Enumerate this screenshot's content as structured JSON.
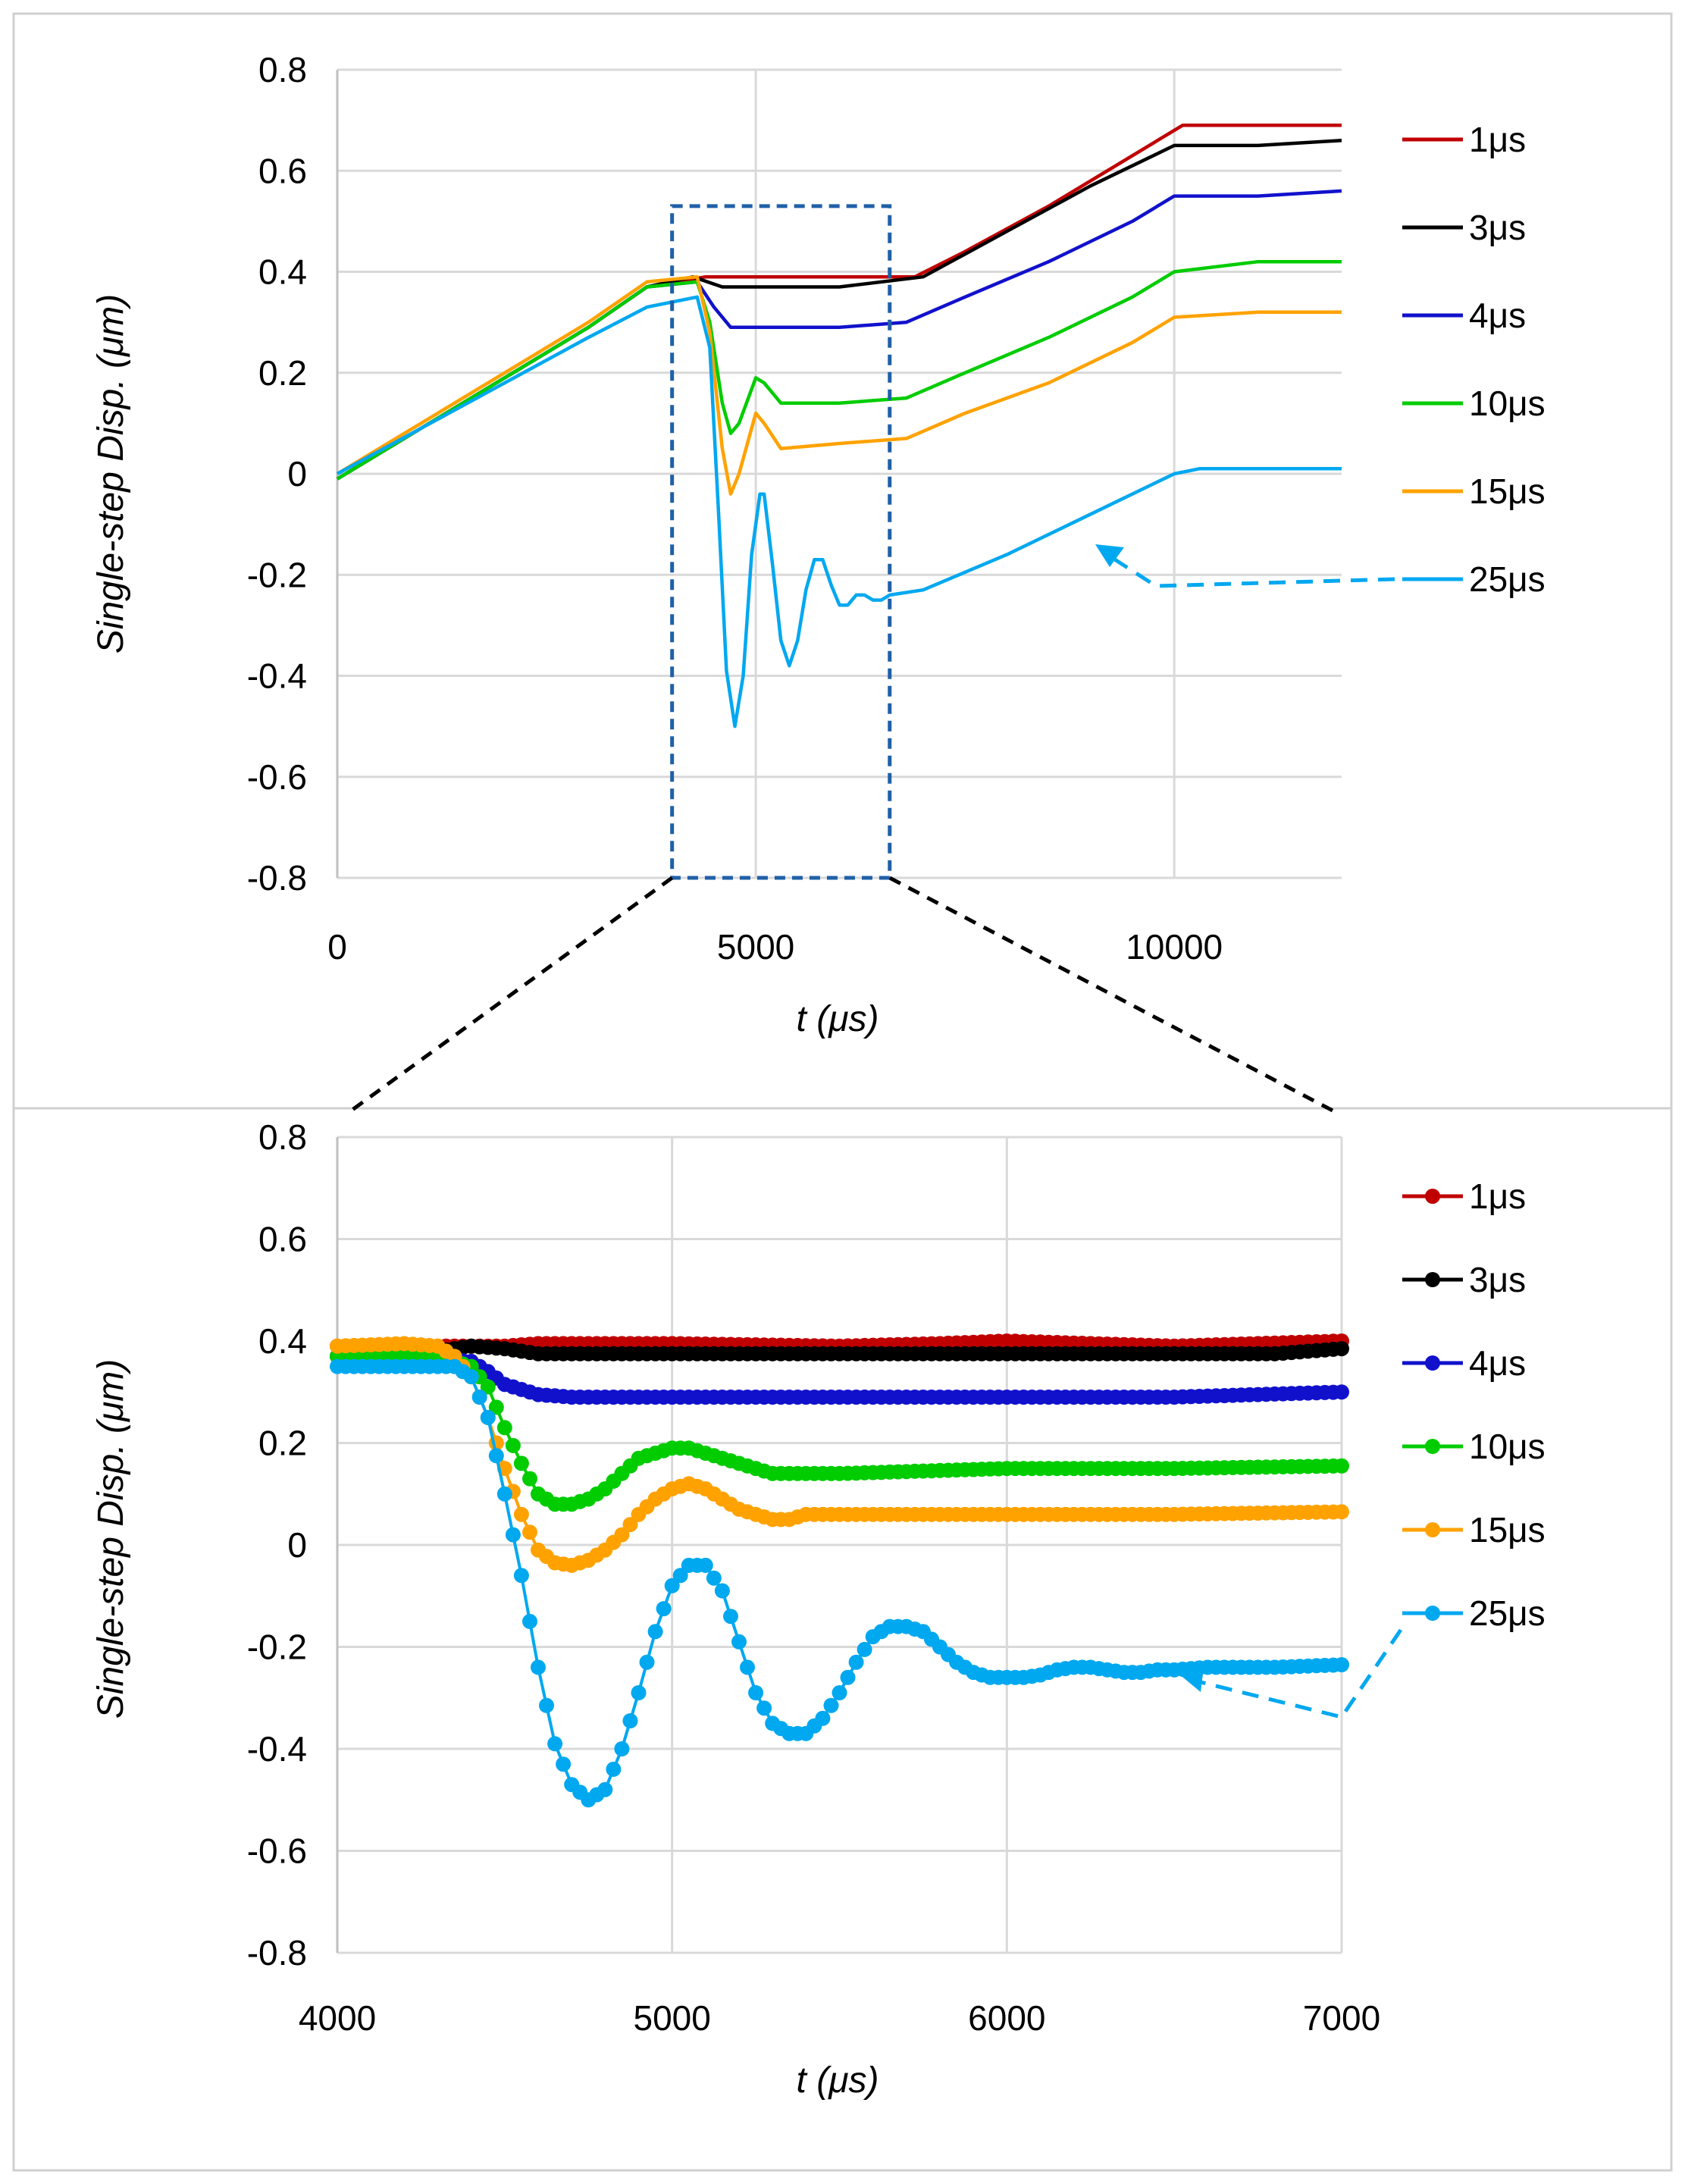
{
  "colors": {
    "s1": "#c00000",
    "s3": "#000000",
    "s4": "#1111cc",
    "s10": "#00cc00",
    "s15": "#ffa200",
    "s25": "#00a8f0",
    "zoom_box": "#2060a8",
    "grid": "#d9d9d9"
  },
  "chart_data": [
    {
      "type": "line",
      "title": "",
      "xlabel": "t (μs)",
      "ylabel": "Single-step Disp. (μm)",
      "xlim": [
        0,
        12000
      ],
      "ylim": [
        -0.8,
        0.8
      ],
      "xticks": [
        0,
        5000,
        10000
      ],
      "xtick_labels": [
        "0",
        "5000",
        "10000"
      ],
      "yticks": [
        -0.8,
        -0.6,
        -0.4,
        -0.2,
        0,
        0.2,
        0.4,
        0.6,
        0.8
      ],
      "ytick_labels": [
        "-0.8",
        "-0.6",
        "-0.4",
        "-0.2",
        "0",
        "0.2",
        "0.4",
        "0.6",
        "0.8"
      ],
      "legend_position": "right",
      "zoom_box": {
        "x": [
          4000,
          6600
        ],
        "y": [
          -0.8,
          0.53
        ]
      },
      "series": [
        {
          "name": "1μs",
          "color_key": "s1",
          "x": [
            0,
            1000,
            2000,
            3000,
            3700,
            4400,
            5000,
            6000,
            6900,
            7500,
            8500,
            9500,
            10100,
            11000,
            12000
          ],
          "y": [
            -0.01,
            0.09,
            0.19,
            0.29,
            0.37,
            0.39,
            0.39,
            0.39,
            0.39,
            0.44,
            0.53,
            0.63,
            0.69,
            0.69,
            0.69
          ]
        },
        {
          "name": "3μs",
          "color_key": "s3",
          "x": [
            0,
            1000,
            2000,
            3000,
            3700,
            4250,
            4600,
            5000,
            6000,
            7000,
            8000,
            9000,
            10000,
            11000,
            12000
          ],
          "y": [
            -0.01,
            0.09,
            0.19,
            0.29,
            0.37,
            0.39,
            0.37,
            0.37,
            0.37,
            0.39,
            0.48,
            0.57,
            0.65,
            0.65,
            0.66
          ]
        },
        {
          "name": "4μs",
          "color_key": "s4",
          "x": [
            0,
            1000,
            2000,
            3000,
            3700,
            4300,
            4500,
            4700,
            5000,
            6000,
            6800,
            7500,
            8500,
            9500,
            10000,
            11000,
            12000
          ],
          "y": [
            -0.01,
            0.09,
            0.19,
            0.29,
            0.37,
            0.38,
            0.33,
            0.29,
            0.29,
            0.29,
            0.3,
            0.35,
            0.42,
            0.5,
            0.55,
            0.55,
            0.56
          ]
        },
        {
          "name": "10μs",
          "color_key": "s10",
          "x": [
            0,
            1000,
            2000,
            3000,
            3700,
            4300,
            4450,
            4600,
            4700,
            4800,
            5000,
            5100,
            5300,
            6000,
            6800,
            7500,
            8500,
            9500,
            10000,
            11000,
            12000
          ],
          "y": [
            -0.01,
            0.09,
            0.19,
            0.29,
            0.37,
            0.38,
            0.3,
            0.14,
            0.08,
            0.1,
            0.19,
            0.18,
            0.14,
            0.14,
            0.15,
            0.2,
            0.27,
            0.35,
            0.4,
            0.42,
            0.42
          ]
        },
        {
          "name": "15μs",
          "color_key": "s15",
          "x": [
            0,
            1000,
            2000,
            3000,
            3700,
            4300,
            4450,
            4600,
            4700,
            4800,
            5000,
            5100,
            5300,
            6000,
            6800,
            7500,
            8500,
            9500,
            10000,
            11000,
            12000
          ],
          "y": [
            0,
            0.1,
            0.2,
            0.3,
            0.38,
            0.39,
            0.28,
            0.05,
            -0.04,
            0.0,
            0.12,
            0.1,
            0.05,
            0.06,
            0.07,
            0.12,
            0.18,
            0.26,
            0.31,
            0.32,
            0.32
          ]
        },
        {
          "name": "25μs",
          "color_key": "s25",
          "x": [
            0,
            1000,
            2000,
            3000,
            3700,
            4300,
            4450,
            4550,
            4650,
            4750,
            4850,
            4950,
            5050,
            5100,
            5200,
            5300,
            5400,
            5500,
            5600,
            5700,
            5800,
            5900,
            6000,
            6100,
            6200,
            6300,
            6400,
            6500,
            6600,
            7000,
            8000,
            9000,
            10000,
            10300,
            11000,
            12000
          ],
          "y": [
            0,
            0.09,
            0.18,
            0.27,
            0.33,
            0.35,
            0.25,
            -0.06,
            -0.39,
            -0.5,
            -0.4,
            -0.16,
            -0.04,
            -0.04,
            -0.18,
            -0.33,
            -0.38,
            -0.33,
            -0.23,
            -0.17,
            -0.17,
            -0.22,
            -0.26,
            -0.26,
            -0.24,
            -0.24,
            -0.25,
            -0.25,
            -0.24,
            -0.23,
            -0.16,
            -0.08,
            0.0,
            0.01,
            0.01,
            0.01
          ]
        }
      ]
    },
    {
      "type": "line",
      "title": "",
      "xlabel": "t (μs)",
      "ylabel": "Single-step Disp. (μm)",
      "xlim": [
        4000,
        7000
      ],
      "ylim": [
        -0.8,
        0.8
      ],
      "xticks": [
        4000,
        5000,
        6000,
        7000
      ],
      "xtick_labels": [
        "4000",
        "5000",
        "6000",
        "7000"
      ],
      "yticks": [
        -0.8,
        -0.6,
        -0.4,
        -0.2,
        0,
        0.2,
        0.4,
        0.6,
        0.8
      ],
      "ytick_labels": [
        "-0.8",
        "-0.6",
        "-0.4",
        "-0.2",
        "0",
        "0.2",
        "0.4",
        "0.6",
        "0.8"
      ],
      "legend_position": "right",
      "markers": true,
      "series": [
        {
          "name": "1μs",
          "color_key": "s1",
          "x": [
            4000,
            4200,
            4300,
            4400,
            4500,
            4600,
            5000,
            5500,
            5800,
            6000,
            6500,
            7000
          ],
          "y": [
            0.39,
            0.39,
            0.39,
            0.39,
            0.39,
            0.395,
            0.395,
            0.39,
            0.395,
            0.4,
            0.39,
            0.4
          ]
        },
        {
          "name": "3μs",
          "color_key": "s3",
          "x": [
            4000,
            4300,
            4400,
            4500,
            4600,
            5000,
            5500,
            6000,
            6500,
            6800,
            7000
          ],
          "y": [
            0.37,
            0.38,
            0.39,
            0.385,
            0.375,
            0.375,
            0.375,
            0.375,
            0.375,
            0.375,
            0.385
          ]
        },
        {
          "name": "4μs",
          "color_key": "s4",
          "x": [
            4000,
            4200,
            4400,
            4450,
            4500,
            4600,
            4700,
            5000,
            5500,
            6000,
            6500,
            7000
          ],
          "y": [
            0.37,
            0.37,
            0.36,
            0.34,
            0.315,
            0.295,
            0.29,
            0.29,
            0.29,
            0.29,
            0.29,
            0.3
          ]
        },
        {
          "name": "10μs",
          "color_key": "s10",
          "x": [
            4000,
            4300,
            4400,
            4450,
            4500,
            4550,
            4600,
            4650,
            4700,
            4750,
            4800,
            4850,
            4900,
            4950,
            5000,
            5050,
            5100,
            5150,
            5200,
            5250,
            5300,
            5400,
            5500,
            6000,
            6500,
            7000
          ],
          "y": [
            0.37,
            0.37,
            0.35,
            0.31,
            0.23,
            0.16,
            0.1,
            0.08,
            0.08,
            0.09,
            0.11,
            0.14,
            0.17,
            0.18,
            0.19,
            0.19,
            0.18,
            0.17,
            0.16,
            0.15,
            0.14,
            0.14,
            0.14,
            0.15,
            0.15,
            0.155
          ]
        },
        {
          "name": "15μs",
          "color_key": "s15",
          "x": [
            4000,
            4200,
            4300,
            4350,
            4400,
            4450,
            4500,
            4550,
            4600,
            4650,
            4700,
            4750,
            4800,
            4850,
            4900,
            4950,
            5000,
            5050,
            5100,
            5150,
            5200,
            5250,
            5300,
            5350,
            5400,
            5500,
            6000,
            6500,
            7000
          ],
          "y": [
            0.39,
            0.395,
            0.39,
            0.37,
            0.33,
            0.25,
            0.15,
            0.06,
            -0.01,
            -0.035,
            -0.04,
            -0.03,
            -0.01,
            0.02,
            0.06,
            0.09,
            0.11,
            0.12,
            0.11,
            0.09,
            0.07,
            0.06,
            0.05,
            0.05,
            0.06,
            0.06,
            0.06,
            0.06,
            0.065
          ]
        },
        {
          "name": "25μs",
          "color_key": "s25",
          "x": [
            4000,
            4200,
            4300,
            4350,
            4400,
            4450,
            4500,
            4550,
            4600,
            4650,
            4700,
            4750,
            4800,
            4850,
            4900,
            4950,
            5000,
            5050,
            5100,
            5150,
            5200,
            5250,
            5300,
            5350,
            5400,
            5450,
            5500,
            5550,
            5600,
            5650,
            5700,
            5750,
            5800,
            5850,
            5900,
            5950,
            6000,
            6050,
            6100,
            6150,
            6200,
            6250,
            6300,
            6350,
            6400,
            6450,
            6500,
            6600,
            6800,
            7000
          ],
          "y": [
            0.35,
            0.35,
            0.35,
            0.35,
            0.33,
            0.25,
            0.1,
            -0.06,
            -0.24,
            -0.39,
            -0.47,
            -0.5,
            -0.48,
            -0.4,
            -0.29,
            -0.17,
            -0.08,
            -0.04,
            -0.04,
            -0.09,
            -0.19,
            -0.29,
            -0.35,
            -0.37,
            -0.37,
            -0.34,
            -0.29,
            -0.23,
            -0.18,
            -0.16,
            -0.16,
            -0.17,
            -0.2,
            -0.23,
            -0.25,
            -0.26,
            -0.26,
            -0.26,
            -0.255,
            -0.245,
            -0.24,
            -0.24,
            -0.245,
            -0.25,
            -0.25,
            -0.245,
            -0.245,
            -0.24,
            -0.24,
            -0.235
          ]
        }
      ]
    }
  ]
}
